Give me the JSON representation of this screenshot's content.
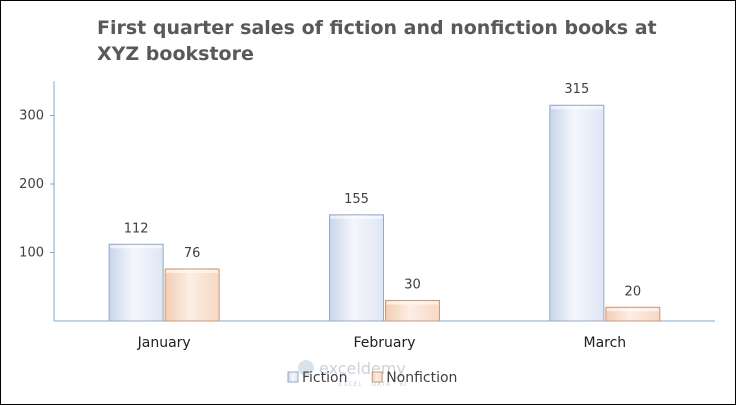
{
  "chart_data": {
    "type": "bar",
    "title": "First quarter sales of fiction and nonfiction books at XYZ bookstore",
    "categories": [
      "January",
      "February",
      "March"
    ],
    "series": [
      {
        "name": "Fiction",
        "values": [
          112,
          155,
          315
        ],
        "color": "#e9eef8",
        "edge": "#95a8c8"
      },
      {
        "name": "Nonfiction",
        "values": [
          76,
          30,
          20
        ],
        "color": "#fbe5d6",
        "edge": "#c99a7a"
      }
    ],
    "yticks": [
      100,
      200,
      300
    ],
    "ylim": [
      0,
      350
    ],
    "xlabel": "",
    "ylabel": "",
    "grid": false,
    "legend": "bottom",
    "axis_color": "#7fa9cf"
  },
  "watermark": {
    "text": "exceldemy",
    "subtext": "EXCEL · DATA · BI"
  }
}
